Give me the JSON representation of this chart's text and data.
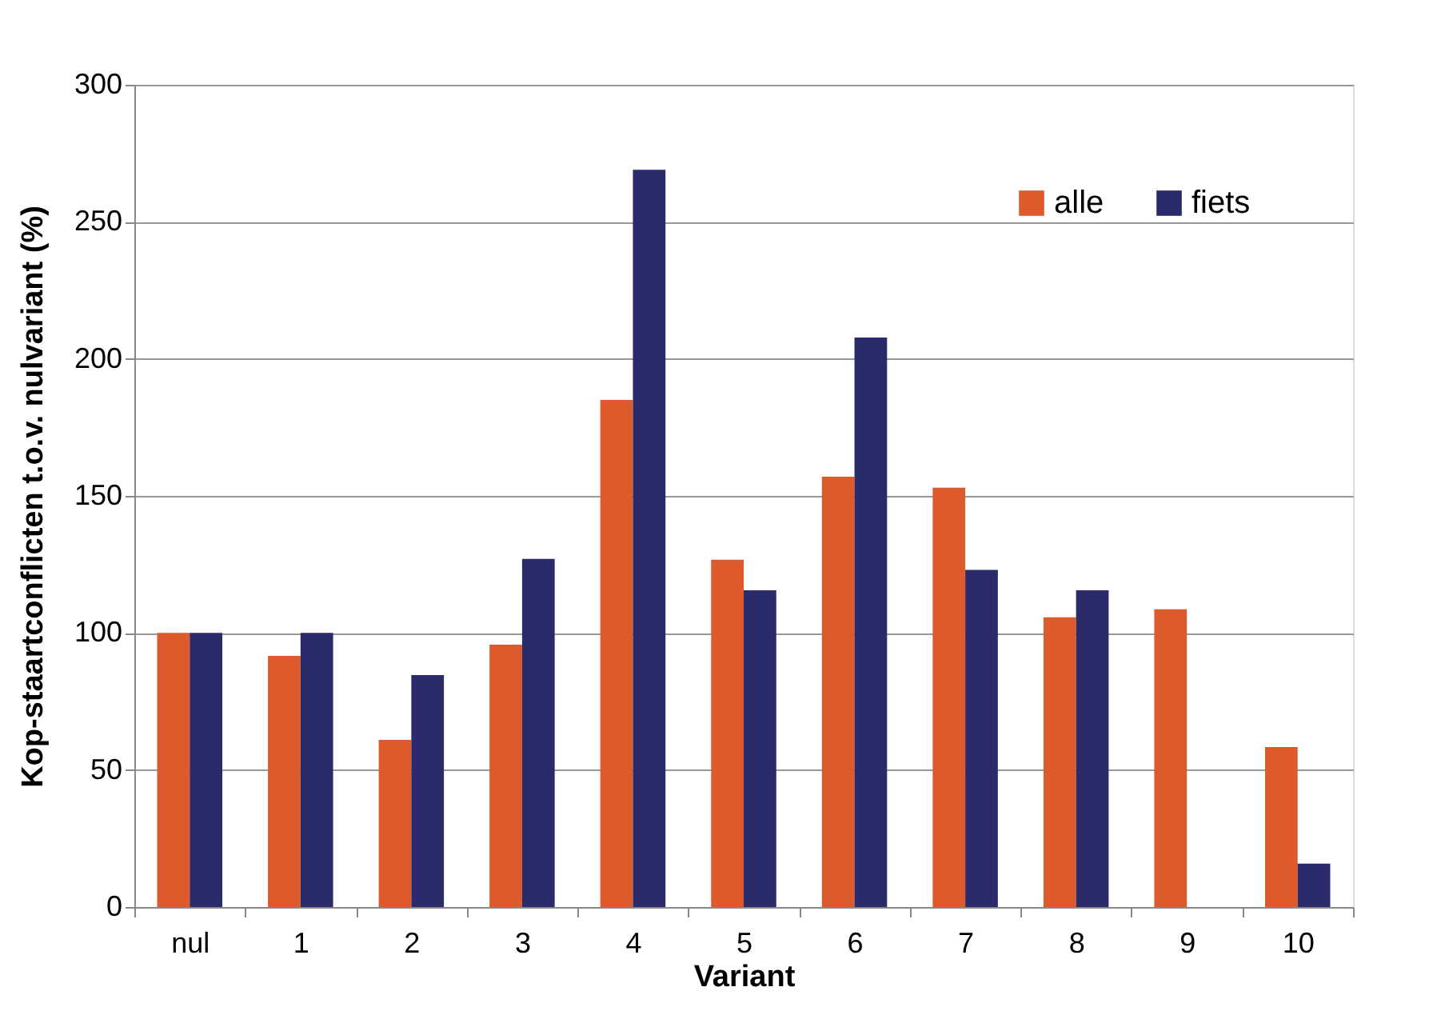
{
  "chart_data": {
    "type": "bar",
    "xlabel": "Variant",
    "ylabel": "Kop-staartconflicten t.o.v. nulvariant (%)",
    "categories": [
      "nul",
      "1",
      "2",
      "3",
      "4",
      "5",
      "6",
      "7",
      "8",
      "9",
      "10"
    ],
    "series": [
      {
        "name": "alle",
        "color": "#dd5a2c",
        "values": [
          100,
          91.6,
          61,
          95.7,
          185,
          126.7,
          157,
          153,
          105.7,
          108.6,
          58.4
        ]
      },
      {
        "name": "fiets",
        "color": "#2b2b6b",
        "values": [
          100,
          100,
          84.6,
          127,
          269,
          115.6,
          207.8,
          123,
          115.6,
          null,
          15.8
        ]
      }
    ],
    "ylim": [
      0,
      300
    ],
    "yticks": [
      0,
      50,
      100,
      150,
      200,
      250,
      300
    ],
    "grid": "y",
    "legend": "top right"
  }
}
